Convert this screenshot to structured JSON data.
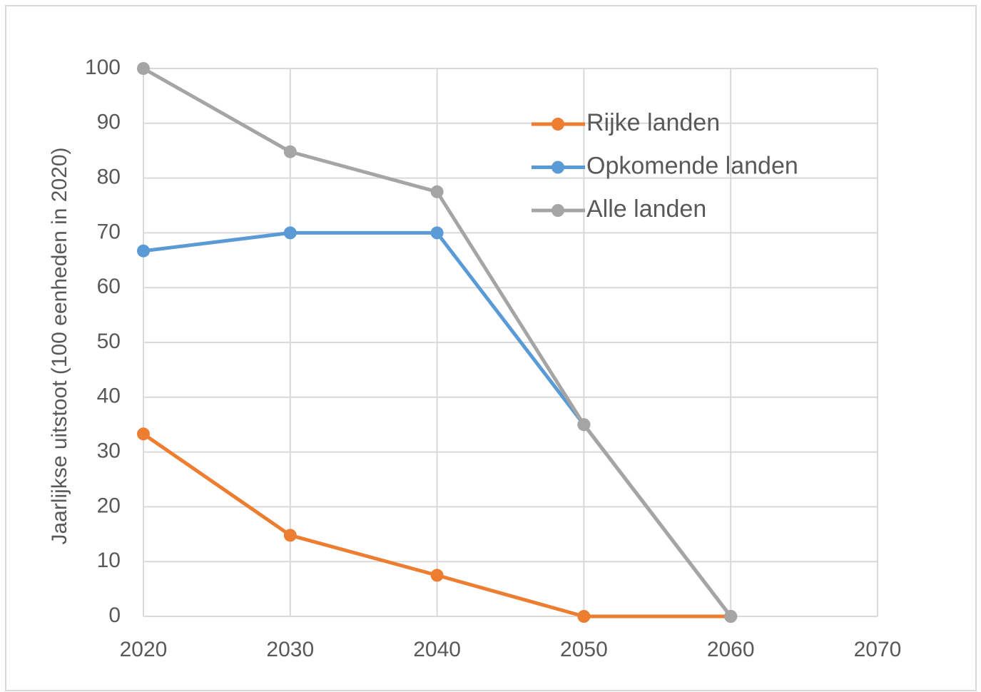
{
  "chart_data": {
    "type": "line",
    "y_label": "Jaarlijkse uitstoot (100 eenheden in 2020)",
    "x": [
      2020,
      2030,
      2040,
      2050,
      2060
    ],
    "series": [
      {
        "name": "Rijke landen",
        "color": "#ed7d31",
        "values": [
          33.3,
          14.8,
          7.5,
          0,
          0
        ]
      },
      {
        "name": "Opkomende landen",
        "color": "#5b9bd5",
        "values": [
          66.7,
          70,
          70,
          35,
          0
        ]
      },
      {
        "name": "Alle landen",
        "color": "#a5a5a5",
        "values": [
          100,
          84.8,
          77.5,
          35,
          0
        ]
      }
    ],
    "xlim": [
      2020,
      2070
    ],
    "xticks": [
      2020,
      2030,
      2040,
      2050,
      2060,
      2070
    ],
    "ylim": [
      0,
      100
    ],
    "yticks": [
      0,
      10,
      20,
      30,
      40,
      50,
      60,
      70,
      80,
      90,
      100
    ],
    "grid": true,
    "legend": "upper right"
  }
}
